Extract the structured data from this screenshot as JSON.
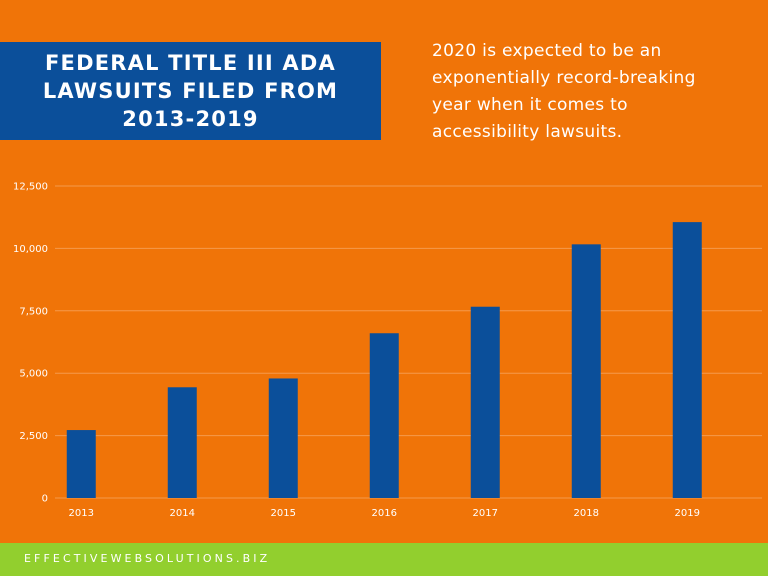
{
  "header": {
    "title_lines": [
      "FEDERAL TITLE III ADA",
      "LAWSUITS FILED FROM",
      "2013-2019"
    ],
    "subtitle_lines": [
      "2020 is expected to be an",
      "exponentially record-breaking",
      "year when it comes to",
      "accessibility lawsuits."
    ]
  },
  "footer": {
    "text": "EFFECTIVEWEBSOLUTIONS.BIZ"
  },
  "colors": {
    "background": "#f07408",
    "bar": "#0b4f9a",
    "title_box": "#0b4f9a",
    "footer": "#92cf2e",
    "gridline": "#f59a4c",
    "text": "#ffffff"
  },
  "chart_data": {
    "type": "bar",
    "categories": [
      "2013",
      "2014",
      "2015",
      "2016",
      "2017",
      "2018",
      "2019"
    ],
    "values": [
      2722,
      4436,
      4789,
      6601,
      7663,
      10163,
      11053
    ],
    "yticks": [
      "0",
      "2,500",
      "5,000",
      "7,500",
      "10,000",
      "12,500"
    ],
    "ylim": [
      0,
      12500
    ],
    "grid": true,
    "xlabel": "",
    "ylabel": ""
  }
}
